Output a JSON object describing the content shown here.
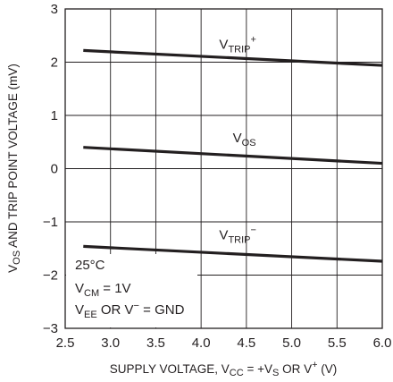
{
  "chart_data": {
    "type": "line",
    "title": "",
    "xlabel": {
      "main": "SUPPLY VOLTAGE, V",
      "sub1": "CC",
      "mid": " = +V",
      "sub2": "S",
      "tail": " OR V",
      "sup": "+",
      "end": " (V)"
    },
    "ylabel": {
      "main": "V",
      "sub": "OS",
      "tail": " AND TRIP POINT VOLTAGE (mV)"
    },
    "xlim": [
      2.5,
      6.0
    ],
    "ylim": [
      -3,
      3
    ],
    "xticks": [
      "2.5",
      "3.0",
      "3.5",
      "4.0",
      "4.5",
      "5.0",
      "5.5",
      "6.0"
    ],
    "yticks": [
      "3",
      "2",
      "1",
      "0",
      "−1",
      "−2",
      "−3"
    ],
    "grid": true,
    "series": [
      {
        "name": "V_TRIP+",
        "label": {
          "main": "V",
          "sub": "TRIP",
          "sup": "+"
        },
        "label_at": [
          4.2,
          2.25
        ],
        "x": [
          2.7,
          6.0
        ],
        "y": [
          2.22,
          1.94
        ]
      },
      {
        "name": "V_OS",
        "label": {
          "main": "V",
          "sub": "OS",
          "sup": ""
        },
        "label_at": [
          4.35,
          0.5
        ],
        "x": [
          2.7,
          6.0
        ],
        "y": [
          0.4,
          0.1
        ]
      },
      {
        "name": "V_TRIP-",
        "label": {
          "main": "V",
          "sub": "TRIP",
          "sup": "−"
        },
        "label_at": [
          4.2,
          -1.33
        ],
        "x": [
          2.7,
          6.0
        ],
        "y": [
          -1.46,
          -1.74
        ]
      }
    ],
    "annotation": {
      "line1": "25°C",
      "line2": {
        "main": "V",
        "sub": "CM",
        "tail": " = 1V"
      },
      "line3": {
        "main": "V",
        "sub": "EE",
        "mid": " OR V",
        "sup": "−",
        "tail": " = GND"
      }
    },
    "line_color": "#231f20",
    "grid_color": "#231f20"
  }
}
